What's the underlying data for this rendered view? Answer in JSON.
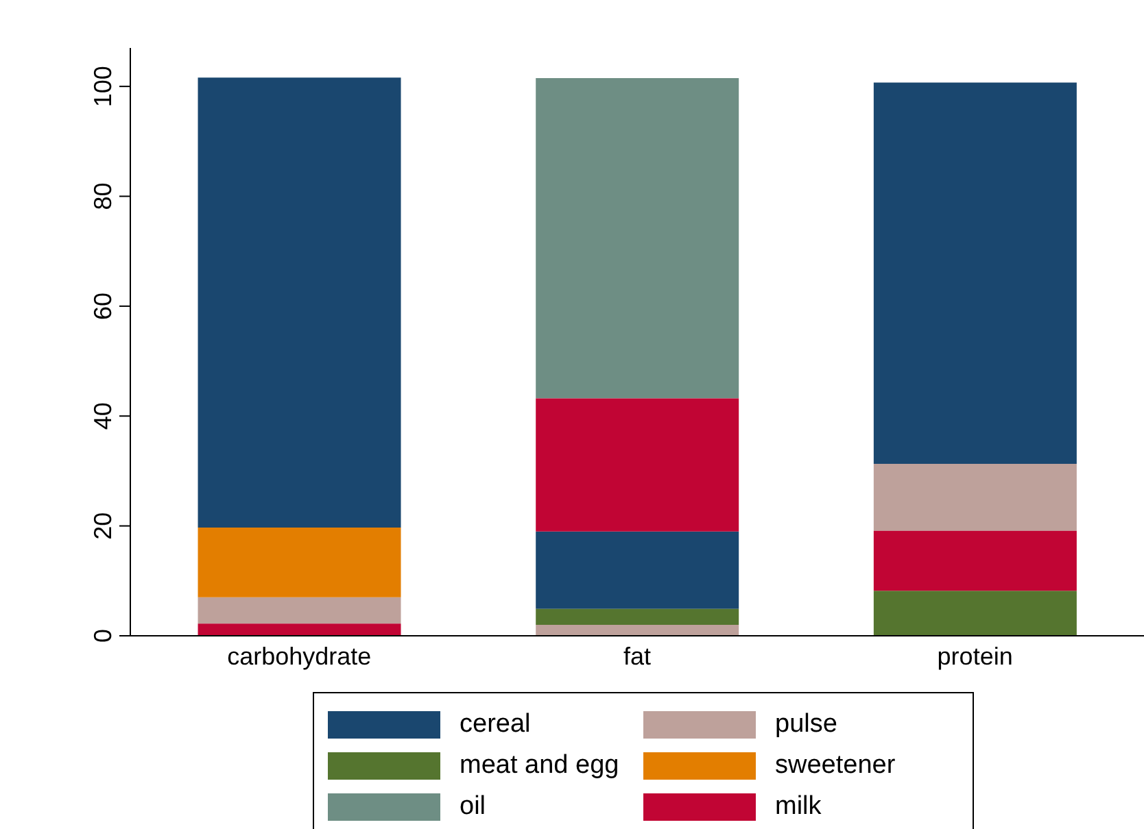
{
  "chart_data": {
    "type": "bar",
    "categories": [
      "carbohydrate",
      "fat",
      "protein"
    ],
    "series": [
      {
        "name": "cereal",
        "color": "#1a476f",
        "base": [
          19.7,
          4.9,
          31.3
        ],
        "values": [
          81.9,
          14.1,
          69.4
        ]
      },
      {
        "name": "meat and egg",
        "color": "#55752f",
        "base": [
          null,
          2.0,
          0
        ],
        "values": [
          null,
          2.9,
          8.2
        ]
      },
      {
        "name": "oil",
        "color": "#6e8e84",
        "base": [
          null,
          43.2,
          null
        ],
        "values": [
          null,
          58.3,
          null
        ]
      },
      {
        "name": "pulse",
        "color": "#bea19b",
        "base": [
          2.2,
          0,
          19.1
        ],
        "values": [
          4.8,
          2.0,
          12.2
        ]
      },
      {
        "name": "sweetener",
        "color": "#e37e00",
        "base": [
          7.0,
          null,
          null
        ],
        "values": [
          12.7,
          null,
          null
        ]
      },
      {
        "name": "milk",
        "color": "#c10534",
        "base": [
          0,
          19.0,
          8.2
        ],
        "values": [
          2.2,
          24.2,
          10.9
        ]
      }
    ],
    "ylim": [
      0,
      107
    ],
    "yticks": [
      0,
      20,
      40,
      60,
      80,
      100
    ],
    "legend": "bottom"
  }
}
